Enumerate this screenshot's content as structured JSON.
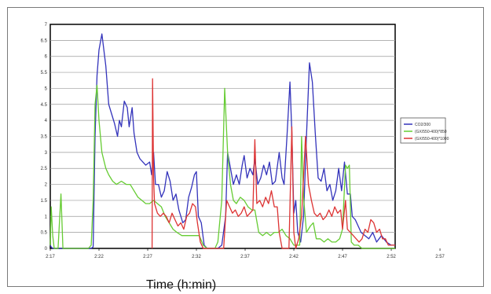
{
  "chart_data": {
    "type": "line",
    "xlabel": "Time (h:min)",
    "ylabel": "",
    "ylim": [
      0,
      7
    ],
    "yticks": [
      "0",
      "0.5",
      "1",
      "1.5",
      "2",
      "2.5",
      "3",
      "3.5",
      "4",
      "4.5",
      "5",
      "5.5",
      "6",
      "6.5",
      "7"
    ],
    "xticks": [
      "2:17",
      "2:22",
      "2:27",
      "2:32",
      "2:37",
      "2:42",
      "2:47",
      "2:52",
      "2:57"
    ],
    "grid": true,
    "legend_position": "right",
    "series": [
      {
        "name": "CO2/300",
        "color": "#3333bb",
        "points": [
          [
            0,
            0.1
          ],
          [
            0.08,
            0.05
          ],
          [
            0.25,
            0
          ],
          [
            0.6,
            0
          ],
          [
            1.3,
            0
          ],
          [
            2,
            0
          ],
          [
            2.6,
            0
          ],
          [
            3.3,
            0
          ],
          [
            3.9,
            0
          ],
          [
            4.2,
            0
          ],
          [
            4.4,
            0.05
          ],
          [
            4.6,
            3.5
          ],
          [
            4.8,
            5.4
          ],
          [
            5.0,
            6.2
          ],
          [
            5.3,
            6.7
          ],
          [
            5.7,
            5.7
          ],
          [
            6.0,
            4.5
          ],
          [
            6.3,
            4.2
          ],
          [
            6.6,
            3.9
          ],
          [
            6.9,
            3.5
          ],
          [
            7.1,
            4.0
          ],
          [
            7.3,
            3.8
          ],
          [
            7.6,
            4.6
          ],
          [
            7.9,
            4.4
          ],
          [
            8.1,
            3.8
          ],
          [
            8.4,
            4.4
          ],
          [
            8.6,
            3.6
          ],
          [
            8.9,
            3.0
          ],
          [
            9.2,
            2.8
          ],
          [
            9.5,
            2.7
          ],
          [
            9.8,
            2.6
          ],
          [
            10.2,
            2.7
          ],
          [
            10.4,
            2.3
          ],
          [
            10.6,
            3.0
          ],
          [
            10.8,
            2.0
          ],
          [
            11.1,
            2.0
          ],
          [
            11.4,
            1.6
          ],
          [
            11.7,
            1.8
          ],
          [
            12.0,
            2.4
          ],
          [
            12.3,
            2.1
          ],
          [
            12.6,
            1.5
          ],
          [
            12.9,
            1.7
          ],
          [
            13.2,
            1.2
          ],
          [
            13.6,
            0.8
          ],
          [
            13.9,
            0.9
          ],
          [
            14.2,
            1.6
          ],
          [
            14.5,
            1.9
          ],
          [
            14.8,
            2.3
          ],
          [
            15.0,
            2.4
          ],
          [
            15.2,
            1.0
          ],
          [
            15.5,
            0.8
          ],
          [
            15.8,
            0.1
          ],
          [
            16.1,
            0
          ],
          [
            16.6,
            0
          ],
          [
            17.2,
            0
          ],
          [
            17.6,
            0.1
          ],
          [
            18.0,
            1.0
          ],
          [
            18.2,
            3.0
          ],
          [
            18.5,
            2.5
          ],
          [
            18.8,
            2.0
          ],
          [
            19.1,
            2.3
          ],
          [
            19.4,
            2.0
          ],
          [
            19.7,
            2.6
          ],
          [
            19.9,
            2.9
          ],
          [
            20.2,
            2.2
          ],
          [
            20.5,
            2.5
          ],
          [
            20.8,
            2.3
          ],
          [
            21.0,
            2.8
          ],
          [
            21.3,
            2.0
          ],
          [
            21.6,
            2.2
          ],
          [
            21.9,
            2.6
          ],
          [
            22.2,
            2.3
          ],
          [
            22.5,
            2.7
          ],
          [
            22.8,
            2.0
          ],
          [
            23.1,
            2.1
          ],
          [
            23.5,
            3.0
          ],
          [
            23.8,
            2.2
          ],
          [
            24.0,
            2.0
          ],
          [
            24.3,
            3.5
          ],
          [
            24.6,
            5.2
          ],
          [
            24.8,
            3.6
          ],
          [
            25.0,
            1.1
          ],
          [
            25.2,
            1.5
          ],
          [
            25.4,
            0.5
          ],
          [
            25.7,
            0.2
          ],
          [
            26.0,
            1.0
          ],
          [
            26.3,
            3.5
          ],
          [
            26.6,
            5.8
          ],
          [
            26.9,
            5.2
          ],
          [
            27.2,
            3.6
          ],
          [
            27.5,
            2.2
          ],
          [
            27.8,
            2.1
          ],
          [
            28.1,
            2.5
          ],
          [
            28.4,
            1.8
          ],
          [
            28.7,
            2.0
          ],
          [
            29.0,
            1.5
          ],
          [
            29.3,
            1.8
          ],
          [
            29.6,
            2.5
          ],
          [
            29.9,
            1.8
          ],
          [
            30.2,
            2.7
          ],
          [
            30.5,
            1.7
          ],
          [
            30.8,
            1.7
          ],
          [
            31.0,
            1.0
          ],
          [
            31.3,
            0.9
          ],
          [
            31.6,
            0.7
          ],
          [
            31.9,
            0.5
          ],
          [
            32.3,
            0.4
          ],
          [
            32.7,
            0.3
          ],
          [
            33.1,
            0.5
          ],
          [
            33.5,
            0.2
          ],
          [
            34.0,
            0.4
          ],
          [
            34.5,
            0.2
          ],
          [
            35.0,
            0.1
          ],
          [
            35.4,
            0.1
          ]
        ]
      },
      {
        "name": "(GX/550-400)*850",
        "color": "#66cc33",
        "points": [
          [
            0,
            0.1
          ],
          [
            0.1,
            1.3
          ],
          [
            0.25,
            0.4
          ],
          [
            0.4,
            0
          ],
          [
            0.8,
            0
          ],
          [
            1.1,
            1.7
          ],
          [
            1.3,
            0
          ],
          [
            2,
            0
          ],
          [
            2.6,
            0
          ],
          [
            3.3,
            0
          ],
          [
            3.9,
            0
          ],
          [
            4.2,
            0.1
          ],
          [
            4.4,
            1.5
          ],
          [
            4.6,
            4.5
          ],
          [
            4.8,
            5.1
          ],
          [
            5.0,
            4.0
          ],
          [
            5.3,
            3.0
          ],
          [
            5.7,
            2.5
          ],
          [
            6.0,
            2.3
          ],
          [
            6.4,
            2.1
          ],
          [
            6.8,
            2.0
          ],
          [
            7.3,
            2.1
          ],
          [
            7.8,
            2.0
          ],
          [
            8.2,
            2.0
          ],
          [
            8.6,
            1.8
          ],
          [
            9.0,
            1.6
          ],
          [
            9.4,
            1.5
          ],
          [
            9.8,
            1.4
          ],
          [
            10.2,
            1.4
          ],
          [
            10.6,
            1.5
          ],
          [
            11.0,
            1.4
          ],
          [
            11.4,
            1.3
          ],
          [
            11.8,
            1.0
          ],
          [
            12.2,
            0.8
          ],
          [
            12.6,
            0.6
          ],
          [
            13.0,
            0.5
          ],
          [
            13.5,
            0.4
          ],
          [
            14.0,
            0.4
          ],
          [
            14.5,
            0.4
          ],
          [
            14.9,
            0.4
          ],
          [
            15.3,
            0.4
          ],
          [
            15.7,
            0.1
          ],
          [
            16.1,
            0
          ],
          [
            16.5,
            0
          ],
          [
            16.9,
            0
          ],
          [
            17.2,
            0.2
          ],
          [
            17.6,
            1.5
          ],
          [
            17.9,
            5.0
          ],
          [
            18.2,
            3.0
          ],
          [
            18.5,
            2.0
          ],
          [
            18.8,
            1.5
          ],
          [
            19.1,
            1.4
          ],
          [
            19.5,
            1.6
          ],
          [
            19.9,
            1.5
          ],
          [
            20.3,
            1.3
          ],
          [
            20.7,
            1.2
          ],
          [
            21.0,
            1.2
          ],
          [
            21.4,
            0.5
          ],
          [
            21.8,
            0.4
          ],
          [
            22.2,
            0.5
          ],
          [
            22.6,
            0.4
          ],
          [
            23.0,
            0.5
          ],
          [
            23.4,
            0.5
          ],
          [
            23.8,
            0.6
          ],
          [
            24.2,
            0.4
          ],
          [
            24.6,
            0.3
          ],
          [
            25.0,
            0.1
          ],
          [
            25.3,
            0.1
          ],
          [
            25.6,
            0.1
          ],
          [
            25.8,
            3.5
          ],
          [
            26.0,
            1.6
          ],
          [
            26.3,
            0.5
          ],
          [
            26.7,
            0.7
          ],
          [
            27.0,
            0.8
          ],
          [
            27.3,
            0.3
          ],
          [
            27.7,
            0.3
          ],
          [
            28.1,
            0.2
          ],
          [
            28.5,
            0.3
          ],
          [
            28.9,
            0.2
          ],
          [
            29.3,
            0.2
          ],
          [
            29.7,
            0.3
          ],
          [
            30.0,
            0.6
          ],
          [
            30.3,
            2.6
          ],
          [
            30.5,
            2.5
          ],
          [
            30.7,
            2.6
          ],
          [
            30.9,
            0.2
          ],
          [
            31.2,
            0.1
          ],
          [
            31.6,
            0.1
          ],
          [
            32.0,
            0
          ],
          [
            33.0,
            0
          ],
          [
            34.0,
            0
          ],
          [
            35.0,
            0
          ],
          [
            35.4,
            0
          ]
        ]
      },
      {
        "name": "(GX/550-400)*1000",
        "color": "#dd3333",
        "points": [
          [
            10.45,
            0
          ],
          [
            10.5,
            5.3
          ],
          [
            10.6,
            2.2
          ],
          [
            10.7,
            1.4
          ],
          [
            11.0,
            1.1
          ],
          [
            11.3,
            1.0
          ],
          [
            11.6,
            1.1
          ],
          [
            11.9,
            1.0
          ],
          [
            12.2,
            0.8
          ],
          [
            12.5,
            1.1
          ],
          [
            12.8,
            0.9
          ],
          [
            13.1,
            0.7
          ],
          [
            13.4,
            0.8
          ],
          [
            13.7,
            0.6
          ],
          [
            14.0,
            1.0
          ],
          [
            14.3,
            1.1
          ],
          [
            14.6,
            1.4
          ],
          [
            14.9,
            1.3
          ],
          [
            15.1,
            0.8
          ],
          [
            15.4,
            0.2
          ],
          [
            15.7,
            0
          ],
          [
            16.2,
            0
          ],
          [
            16.8,
            0
          ],
          [
            17.4,
            0
          ],
          [
            17.8,
            0
          ],
          [
            18.1,
            1.5
          ],
          [
            18.4,
            1.3
          ],
          [
            18.7,
            1.1
          ],
          [
            19.0,
            1.2
          ],
          [
            19.3,
            1.0
          ],
          [
            19.6,
            1.1
          ],
          [
            19.9,
            1.3
          ],
          [
            20.2,
            1.0
          ],
          [
            20.5,
            1.1
          ],
          [
            20.8,
            1.2
          ],
          [
            21.0,
            3.4
          ],
          [
            21.2,
            1.4
          ],
          [
            21.5,
            1.5
          ],
          [
            21.8,
            1.3
          ],
          [
            22.1,
            1.6
          ],
          [
            22.4,
            1.4
          ],
          [
            22.7,
            1.8
          ],
          [
            23.0,
            1.3
          ],
          [
            23.3,
            1.3
          ],
          [
            23.5,
            0.5
          ],
          [
            23.8,
            0
          ],
          [
            24.1,
            0
          ],
          [
            24.5,
            0
          ],
          [
            24.8,
            3.8
          ],
          [
            25.0,
            0.5
          ],
          [
            25.2,
            0
          ],
          [
            25.5,
            0.3
          ],
          [
            25.8,
            1.0
          ],
          [
            26.2,
            3.5
          ],
          [
            26.5,
            2.0
          ],
          [
            26.8,
            1.5
          ],
          [
            27.1,
            1.1
          ],
          [
            27.4,
            1.0
          ],
          [
            27.7,
            1.1
          ],
          [
            28.0,
            0.9
          ],
          [
            28.3,
            1.0
          ],
          [
            28.6,
            1.2
          ],
          [
            28.9,
            1.0
          ],
          [
            29.2,
            1.3
          ],
          [
            29.5,
            1.1
          ],
          [
            29.8,
            1.2
          ],
          [
            30.0,
            0.6
          ],
          [
            30.3,
            1.5
          ],
          [
            30.5,
            0.6
          ],
          [
            30.8,
            0.5
          ],
          [
            31.1,
            0.4
          ],
          [
            31.4,
            0.3
          ],
          [
            31.7,
            0.2
          ],
          [
            32.0,
            0.3
          ],
          [
            32.3,
            0.6
          ],
          [
            32.6,
            0.5
          ],
          [
            32.9,
            0.9
          ],
          [
            33.2,
            0.8
          ],
          [
            33.5,
            0.5
          ],
          [
            33.8,
            0.6
          ],
          [
            34.1,
            0.3
          ],
          [
            34.4,
            0.3
          ],
          [
            34.7,
            0.1
          ],
          [
            35.0,
            0.1
          ],
          [
            35.4,
            0.1
          ]
        ]
      }
    ]
  }
}
